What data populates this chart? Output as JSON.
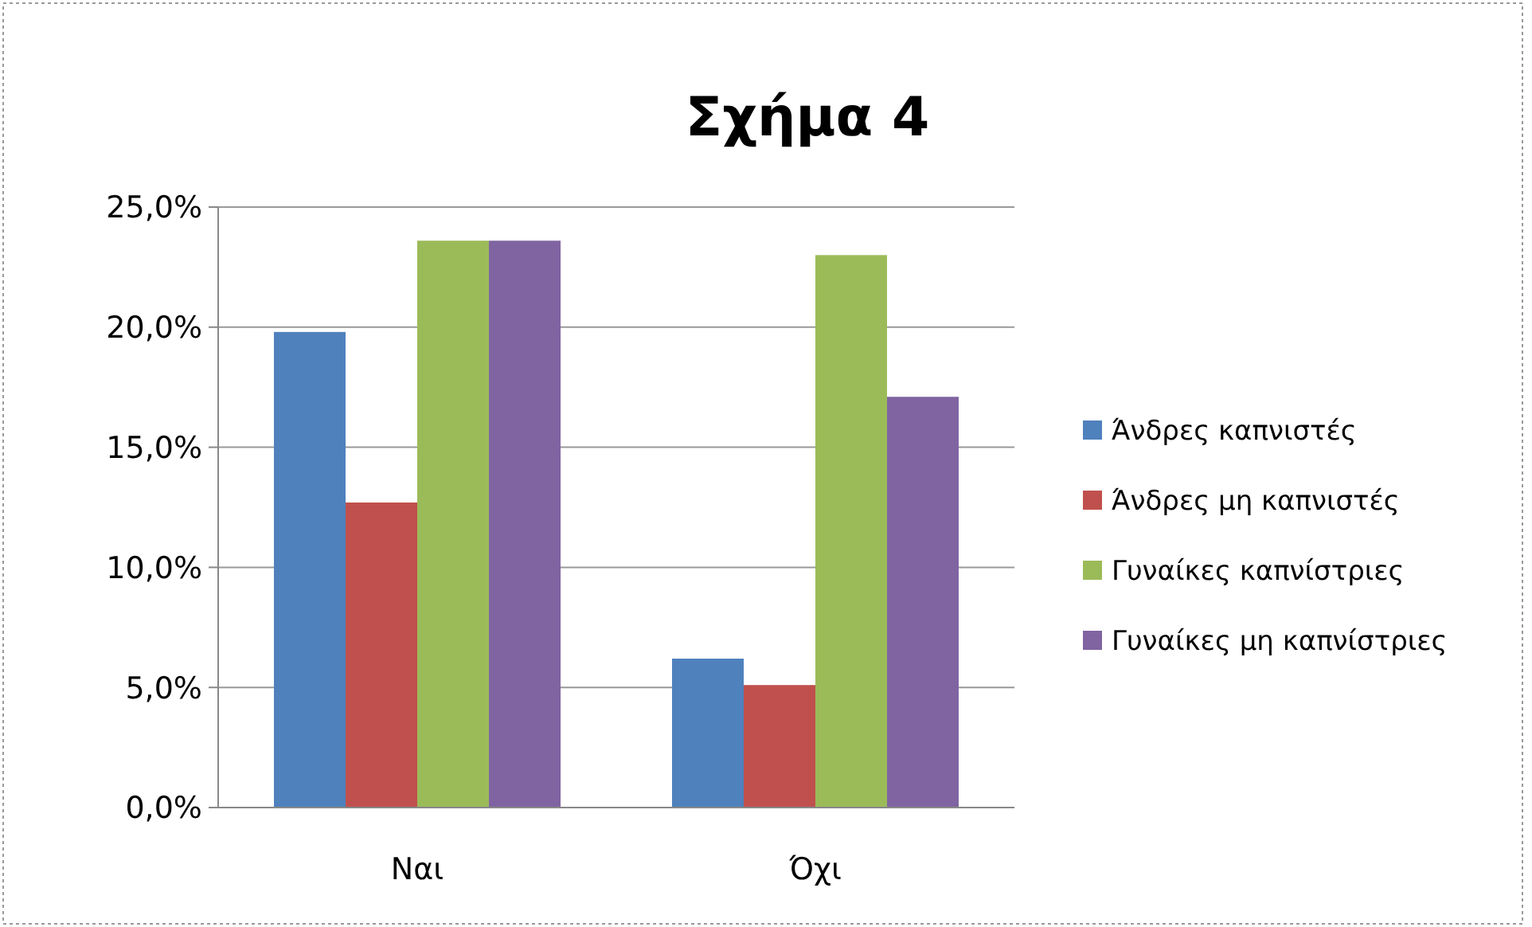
{
  "chart_data": {
    "type": "bar",
    "title": "Σχήμα 4",
    "categories": [
      "Ναι",
      "Όχι"
    ],
    "series": [
      {
        "name": "Άνδρες καπνιστές",
        "color": "#4f81bd",
        "values": [
          19.8,
          6.2
        ]
      },
      {
        "name": "Άνδρες μη καπνιστές",
        "color": "#c0504d",
        "values": [
          12.7,
          5.1
        ]
      },
      {
        "name": "Γυναίκες καπνίστριες",
        "color": "#9bbb59",
        "values": [
          23.6,
          23.0
        ]
      },
      {
        "name": "Γυναίκες μη καπνίστριες",
        "color": "#8064a2",
        "values": [
          23.6,
          17.1
        ]
      }
    ],
    "ylim": [
      0,
      25
    ],
    "yticks": [
      {
        "value": 0,
        "label": "0,0%"
      },
      {
        "value": 5,
        "label": "5,0%"
      },
      {
        "value": 10,
        "label": "10,0%"
      },
      {
        "value": 15,
        "label": "15,0%"
      },
      {
        "value": 20,
        "label": "20,0%"
      },
      {
        "value": 25,
        "label": "25,0%"
      }
    ],
    "grid": "y",
    "legend": "right"
  }
}
